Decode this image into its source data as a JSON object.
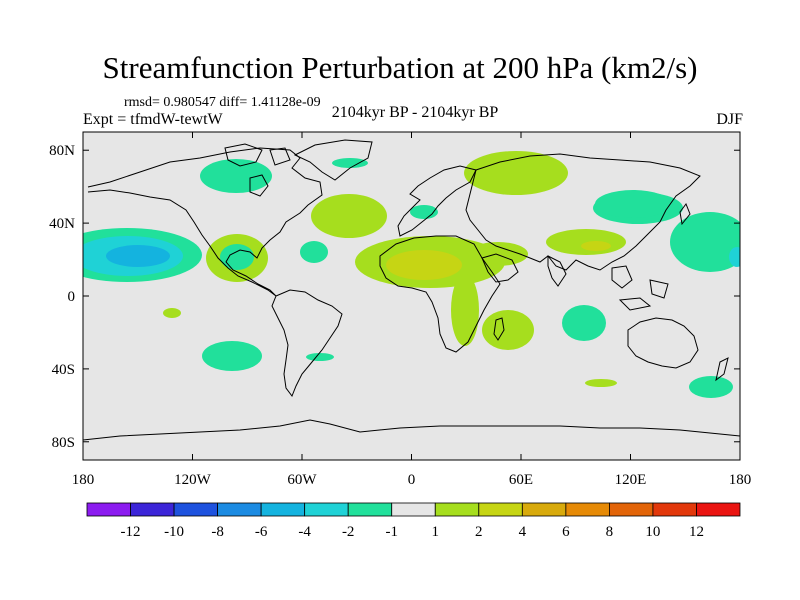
{
  "title": "Streamfunction Perturbation at 200 hPa (km2/s)",
  "stat_text": "rmsd= 0.980547 diff= 1.41128e-09",
  "left_label": "Expt = tfmdW-tewtW",
  "center_label": "2104kyr BP - 2104kyr BP",
  "right_label": "DJF",
  "chart_data": {
    "type": "heatmap",
    "projection": "cylindrical equidistant",
    "title": "Streamfunction Perturbation at 200 hPa (km2/s)",
    "xlim": [
      -180,
      180
    ],
    "ylim": [
      -90,
      90
    ],
    "x_ticks": [
      {
        "value": -180,
        "label": "180"
      },
      {
        "value": -120,
        "label": "120W"
      },
      {
        "value": -60,
        "label": "60W"
      },
      {
        "value": 0,
        "label": "0"
      },
      {
        "value": 60,
        "label": "60E"
      },
      {
        "value": 120,
        "label": "120E"
      },
      {
        "value": 180,
        "label": "180"
      }
    ],
    "y_ticks": [
      {
        "value": 80,
        "label": "80N"
      },
      {
        "value": 40,
        "label": "40N"
      },
      {
        "value": 0,
        "label": "0"
      },
      {
        "value": -40,
        "label": "40S"
      },
      {
        "value": -80,
        "label": "80S"
      }
    ],
    "colorbar": {
      "colors": [
        "#8c1cf0",
        "#3c25d8",
        "#1e52de",
        "#1c8be2",
        "#14b3df",
        "#1fd2d6",
        "#21e09b",
        "#e6e6e6",
        "#a6de1e",
        "#c6d514",
        "#d8aa0c",
        "#e68a06",
        "#e26408",
        "#e2380b",
        "#ea1411"
      ],
      "labels": [
        "-12",
        "-10",
        "-8",
        "-6",
        "-4",
        "-2",
        "-1",
        "1",
        "2",
        "4",
        "6",
        "8",
        "10",
        "12"
      ]
    },
    "anomalies": [
      {
        "name": "east-pacific-low",
        "lon": -150,
        "lat": 22,
        "value": -6
      },
      {
        "name": "east-pacific-low-core",
        "lon": -147,
        "lat": 22,
        "value": -8
      },
      {
        "name": "gulf-of-mexico-high",
        "lon": -91,
        "lat": 23,
        "value": 2
      },
      {
        "name": "gulf-core-ring",
        "lon": -91,
        "lat": 22,
        "value": -1
      },
      {
        "name": "canada-low",
        "lon": -96,
        "lat": 64,
        "value": -1
      },
      {
        "name": "greenland-low",
        "lon": -33,
        "lat": 72,
        "value": -1
      },
      {
        "name": "siberia-high",
        "lon": 48,
        "lat": 69,
        "value": 2
      },
      {
        "name": "north-atlantic-high",
        "lon": -28,
        "lat": 44,
        "value": 2
      },
      {
        "name": "north-africa-high",
        "lon": 10,
        "lat": 20,
        "value": 2
      },
      {
        "name": "sahara-core",
        "lon": 10,
        "lat": 19,
        "value": 4
      },
      {
        "name": "arabia-high",
        "lon": 50,
        "lat": 24,
        "value": 2
      },
      {
        "name": "mediterranean-low",
        "lon": 8,
        "lat": 42,
        "value": -1
      },
      {
        "name": "east-africa-high",
        "lon": 42,
        "lat": -8,
        "value": 2
      },
      {
        "name": "madagascar-high",
        "lon": 55,
        "lat": -18,
        "value": 2
      },
      {
        "name": "tibet-high",
        "lon": 96,
        "lat": 29,
        "value": 2
      },
      {
        "name": "tibet-core",
        "lon": 99,
        "lat": 29,
        "value": 4
      },
      {
        "name": "north-pacific-low",
        "lon": 140,
        "lat": 44,
        "value": -1
      },
      {
        "name": "west-pacific-low",
        "lon": 160,
        "lat": 32,
        "value": -1
      },
      {
        "name": "south-pacific-low",
        "lon": -107,
        "lat": -33,
        "value": -1
      },
      {
        "name": "chile-low",
        "lon": -59,
        "lat": -35,
        "value": -1
      },
      {
        "name": "south-atlantic-low",
        "lon": -44,
        "lat": 19,
        "value": -1
      },
      {
        "name": "southeast-pacific-high",
        "lon": -127,
        "lat": -9,
        "value": 2
      },
      {
        "name": "indian-ocean-low",
        "lon": 85,
        "lat": -15,
        "value": -1
      },
      {
        "name": "south-indian-high",
        "lon": 100,
        "lat": -47,
        "value": 2
      },
      {
        "name": "new-zealand-low",
        "lon": 163,
        "lat": -50,
        "value": -1
      }
    ]
  }
}
